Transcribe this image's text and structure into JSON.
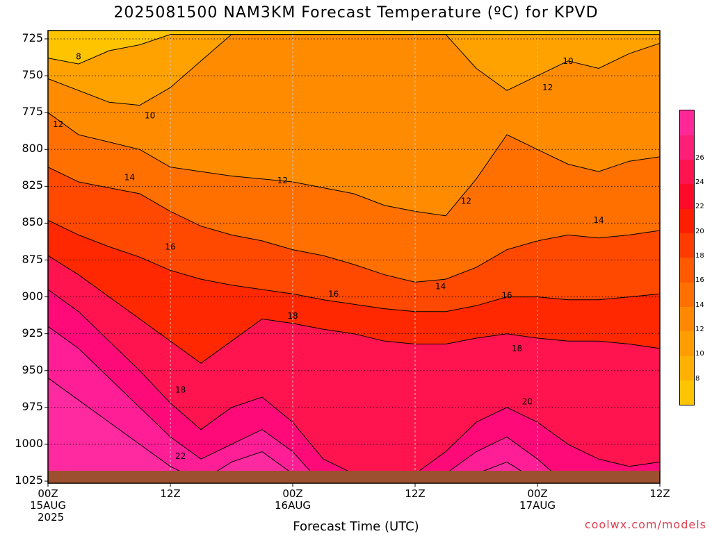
{
  "title": "2025081500 NAM3KM Forecast Temperature (ºC) for KPVD",
  "footer": "coolwx.com/models",
  "chart_data": {
    "type": "heatmap",
    "title": "2025081500 NAM3KM Forecast Temperature (ºC) for KPVD",
    "xlabel": "Forecast Time (UTC)",
    "ylabel": "",
    "x_ticks": [
      {
        "l1": "00Z",
        "l2": "15AUG",
        "l3": "2025"
      },
      {
        "l1": "12Z",
        "l2": "",
        "l3": ""
      },
      {
        "l1": "00Z",
        "l2": "16AUG",
        "l3": ""
      },
      {
        "l1": "12Z",
        "l2": "",
        "l3": ""
      },
      {
        "l1": "00Z",
        "l2": "17AUG",
        "l3": ""
      },
      {
        "l1": "12Z",
        "l2": "",
        "l3": ""
      }
    ],
    "xlim": [
      0,
      60
    ],
    "x_hours": [
      0,
      12,
      24,
      36,
      48,
      60
    ],
    "y_ticks": [
      725,
      750,
      775,
      800,
      825,
      850,
      875,
      900,
      925,
      950,
      975,
      1000,
      1025
    ],
    "ylim": [
      1028,
      722
    ],
    "colorbar": {
      "levels": [
        8,
        10,
        12,
        14,
        16,
        18,
        20,
        22,
        24,
        26
      ],
      "colors": [
        "#ffc400",
        "#ffb000",
        "#ff9c00",
        "#ff8800",
        "#ff7000",
        "#ff5a00",
        "#ff3c00",
        "#ff1e00",
        "#ff0a28",
        "#ff1450",
        "#ff1e78",
        "#ff2896"
      ]
    },
    "contour_labels": [
      {
        "text": "8",
        "t": 3,
        "p": 737
      },
      {
        "text": "10",
        "t": 10,
        "p": 777
      },
      {
        "text": "12",
        "t": 1,
        "p": 783
      },
      {
        "text": "14",
        "t": 8,
        "p": 819
      },
      {
        "text": "12",
        "t": 23,
        "p": 821
      },
      {
        "text": "16",
        "t": 12,
        "p": 866
      },
      {
        "text": "14",
        "t": 38.5,
        "p": 893
      },
      {
        "text": "16",
        "t": 28,
        "p": 898
      },
      {
        "text": "18",
        "t": 24,
        "p": 913
      },
      {
        "text": "16",
        "t": 45,
        "p": 899
      },
      {
        "text": "18",
        "t": 46,
        "p": 935
      },
      {
        "text": "18",
        "t": 13,
        "p": 963
      },
      {
        "text": "22",
        "t": 13,
        "p": 1008
      },
      {
        "text": "20",
        "t": 47,
        "p": 971
      },
      {
        "text": "10",
        "t": 51,
        "p": 740
      },
      {
        "text": "12",
        "t": 49,
        "p": 758
      },
      {
        "text": "12",
        "t": 41,
        "p": 835
      },
      {
        "text": "14",
        "t": 54,
        "p": 848
      }
    ],
    "grid": true,
    "legend_position": "right"
  }
}
